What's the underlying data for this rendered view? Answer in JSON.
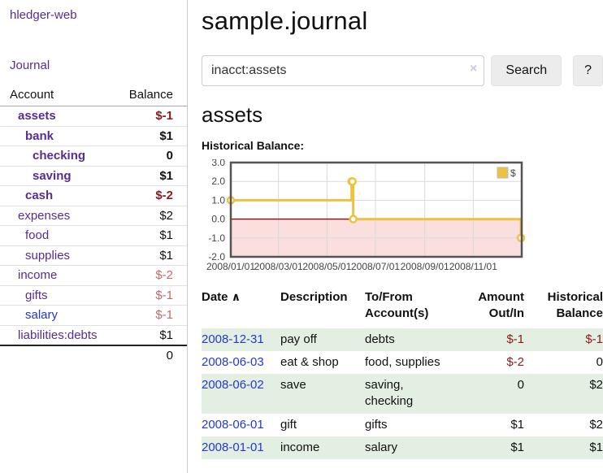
{
  "app": {
    "brand": "hledger-web",
    "nav_journal": "Journal"
  },
  "sidebar": {
    "accounts_header": {
      "account": "Account",
      "balance": "Balance"
    },
    "accounts": [
      {
        "name": "assets",
        "balance": "$-1",
        "level": 1,
        "bold": true,
        "balance_color": "negative-strong"
      },
      {
        "name": "bank",
        "balance": "$1",
        "level": 2,
        "bold": true,
        "balance_color": "normal"
      },
      {
        "name": "checking",
        "balance": "0",
        "level": 3,
        "bold": true,
        "balance_color": "normal"
      },
      {
        "name": "saving",
        "balance": "$1",
        "level": 3,
        "bold": true,
        "balance_color": "normal"
      },
      {
        "name": "cash",
        "balance": "$-2",
        "level": 2,
        "bold": true,
        "balance_color": "negative-strong"
      },
      {
        "name": "expenses",
        "balance": "$2",
        "level": 1,
        "bold": false,
        "balance_color": "normal"
      },
      {
        "name": "food",
        "balance": "$1",
        "level": 2,
        "bold": false,
        "balance_color": "normal"
      },
      {
        "name": "supplies",
        "balance": "$1",
        "level": 2,
        "bold": false,
        "balance_color": "normal"
      },
      {
        "name": "income",
        "balance": "$-2",
        "level": 1,
        "bold": false,
        "balance_color": "negative-soft"
      },
      {
        "name": "gifts",
        "balance": "$-1",
        "level": 2,
        "bold": false,
        "balance_color": "negative-soft"
      },
      {
        "name": "salary",
        "balance": "$-1",
        "level": 2,
        "bold": false,
        "balance_color": "negative-soft",
        "link_color": "blue"
      },
      {
        "name": "liabilities:debts",
        "balance": "$1",
        "level": 1,
        "bold": false,
        "balance_color": "normal"
      }
    ],
    "total": "0"
  },
  "main": {
    "title": "sample.journal",
    "search": {
      "value": "inacct:assets",
      "clear_icon": "×",
      "button": "Search",
      "help_button": "?"
    },
    "account_heading": "assets",
    "chart_label": "Historical Balance:"
  },
  "chart_data": {
    "type": "line",
    "title": "Historical Balance",
    "step": true,
    "x_range": [
      "2008-01-01",
      "2009-01-01"
    ],
    "ylim": [
      -2,
      3
    ],
    "y_ticks": [
      3.0,
      2.0,
      1.0,
      0.0,
      -1.0,
      -2.0
    ],
    "x_ticks": [
      "2008/01/01",
      "2008/03/01",
      "2008/05/01",
      "2008/07/01",
      "2008/09/01",
      "2008/11/01"
    ],
    "series": [
      {
        "name": "$",
        "color": "#edc240",
        "points": [
          [
            "2008-01-01",
            1
          ],
          [
            "2008-06-01",
            2
          ],
          [
            "2008-06-02",
            2
          ],
          [
            "2008-06-03",
            0
          ],
          [
            "2008-12-31",
            -1
          ]
        ]
      }
    ],
    "negative_fill": "#fbdede",
    "zero_line_color": "#a40000",
    "grid": true,
    "legend": {
      "label": "$",
      "position": "top-right"
    }
  },
  "register": {
    "headers": {
      "date": "Date",
      "description": "Description",
      "accounts": "To/From Account(s)",
      "amount": "Amount Out/In",
      "balance": "Historical Balance"
    },
    "sort_icon": "∧",
    "rows": [
      {
        "date": "2008-12-31",
        "description": "pay off",
        "accounts": "debts",
        "amount": "$-1",
        "balance": "$-1"
      },
      {
        "date": "2008-06-03",
        "description": "eat & shop",
        "accounts": "food, supplies",
        "amount": "$-2",
        "balance": "0"
      },
      {
        "date": "2008-06-02",
        "description": "save",
        "accounts": "saving, checking",
        "amount": "0",
        "balance": "$2"
      },
      {
        "date": "2008-06-01",
        "description": "gift",
        "accounts": "gifts",
        "amount": "$1",
        "balance": "$2"
      },
      {
        "date": "2008-01-01",
        "description": "income",
        "accounts": "salary",
        "amount": "$1",
        "balance": "$1"
      }
    ]
  }
}
